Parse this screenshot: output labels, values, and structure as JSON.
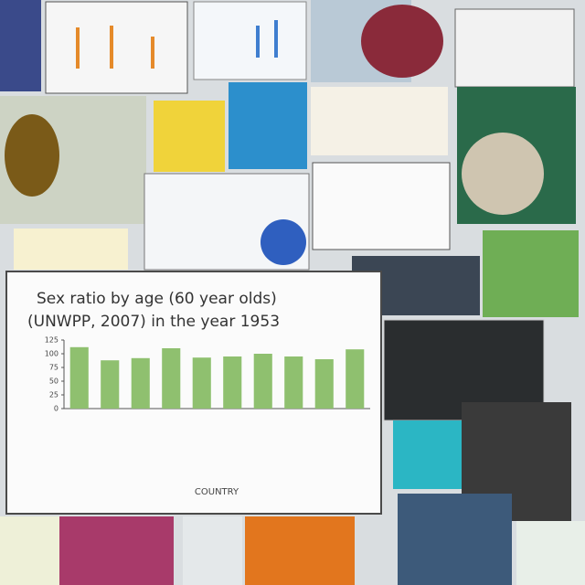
{
  "chart_data": {
    "type": "bar",
    "title": "Sex ratio by age (60 year olds)",
    "subtitle": "(UNWPP, 2007) in the year 1953",
    "x_label": "COUNTRY",
    "categories": [
      null,
      null,
      null,
      null,
      null,
      null,
      null,
      null,
      null,
      null
    ],
    "values": [
      112,
      88,
      92,
      110,
      93,
      95,
      100,
      95,
      90,
      108
    ],
    "color": "#8fc06f",
    "ylim": [
      0,
      125
    ],
    "yticks": [
      0,
      25,
      50,
      75,
      100,
      125
    ],
    "grid": false
  }
}
